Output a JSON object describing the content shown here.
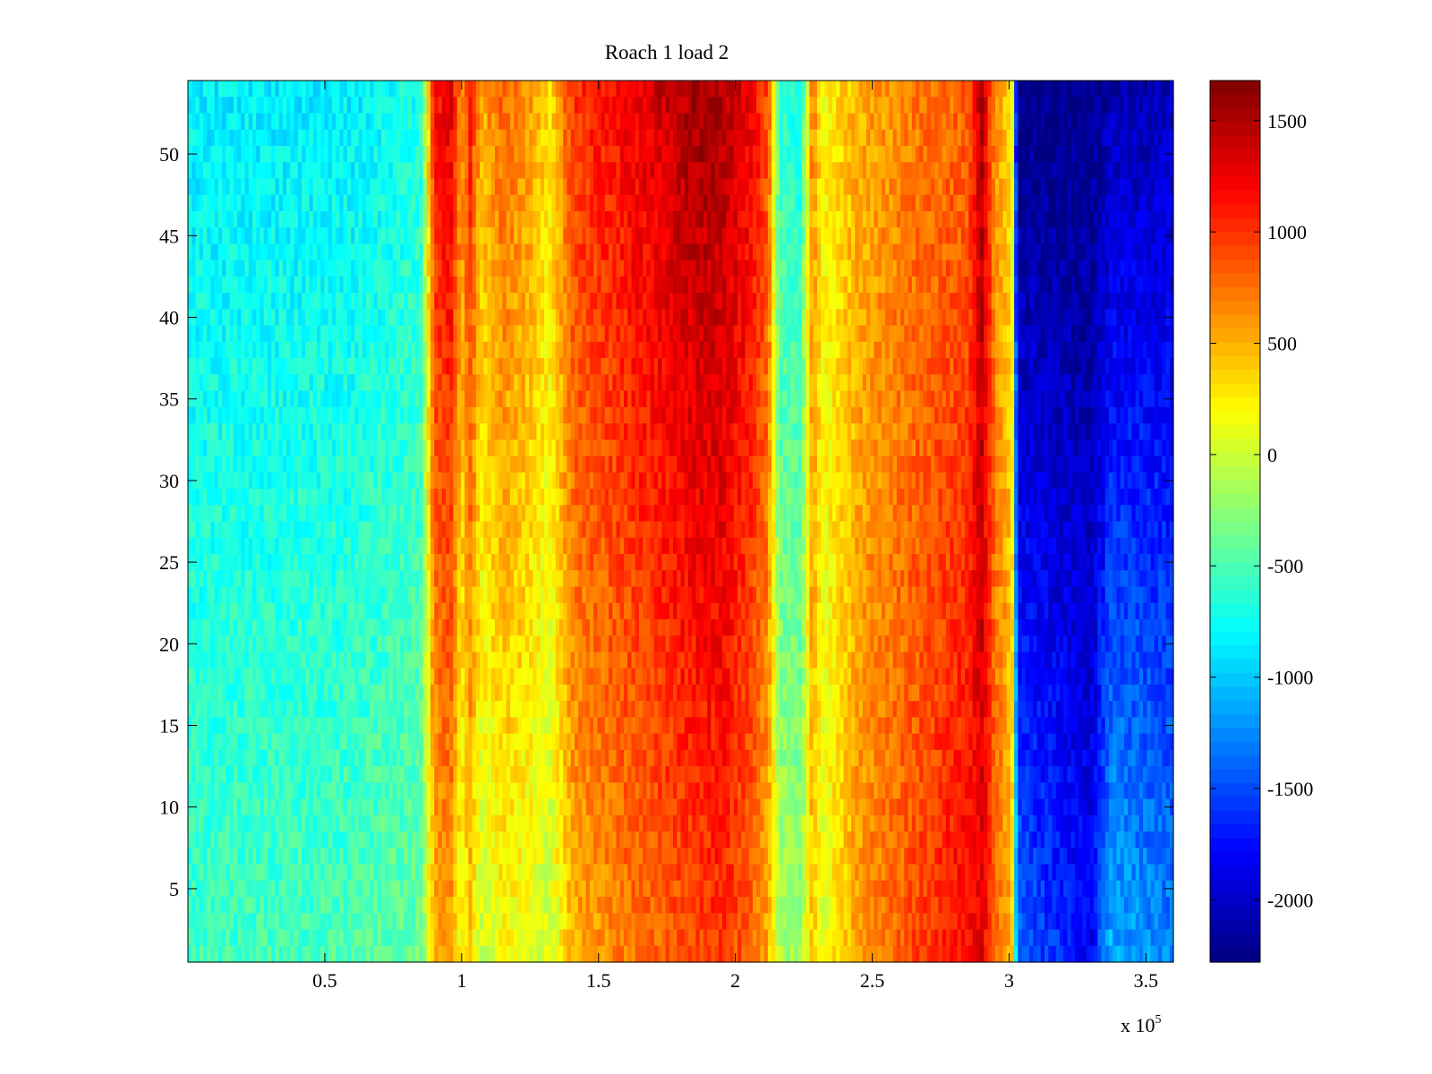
{
  "chart_data": {
    "type": "heatmap",
    "title": "Roach 1 load 2",
    "xlabel": "",
    "ylabel": "",
    "x_multiplier_label": "x 10",
    "x_multiplier_exponent": "5",
    "xlim": [
      0,
      360000
    ],
    "ylim": [
      0.5,
      54.5
    ],
    "x_ticks": [
      {
        "value": 50000,
        "label": "0.5"
      },
      {
        "value": 100000,
        "label": "1"
      },
      {
        "value": 150000,
        "label": "1.5"
      },
      {
        "value": 200000,
        "label": "2"
      },
      {
        "value": 250000,
        "label": "2.5"
      },
      {
        "value": 300000,
        "label": "3"
      },
      {
        "value": 350000,
        "label": "3.5"
      }
    ],
    "y_ticks": [
      {
        "value": 5,
        "label": "5"
      },
      {
        "value": 10,
        "label": "10"
      },
      {
        "value": 15,
        "label": "15"
      },
      {
        "value": 20,
        "label": "20"
      },
      {
        "value": 25,
        "label": "25"
      },
      {
        "value": 30,
        "label": "30"
      },
      {
        "value": 35,
        "label": "35"
      },
      {
        "value": 40,
        "label": "40"
      },
      {
        "value": 45,
        "label": "45"
      },
      {
        "value": 50,
        "label": "50"
      }
    ],
    "colormap": "jet",
    "clim": [
      -2280,
      1680
    ],
    "colorbar_ticks": [
      {
        "value": 1500,
        "label": "1500"
      },
      {
        "value": 1000,
        "label": "1000"
      },
      {
        "value": 500,
        "label": "500"
      },
      {
        "value": 0,
        "label": "0"
      },
      {
        "value": -500,
        "label": "-500"
      },
      {
        "value": -1000,
        "label": "-1000"
      },
      {
        "value": -1500,
        "label": "-1500"
      },
      {
        "value": -2000,
        "label": "-2000"
      }
    ],
    "grid": false,
    "rows": 54,
    "column_profile": [
      {
        "x": 0,
        "top": -850,
        "bottom": -550
      },
      {
        "x": 60000,
        "top": -850,
        "bottom": -500
      },
      {
        "x": 85000,
        "top": -700,
        "bottom": -400
      },
      {
        "x": 90000,
        "top": 1100,
        "bottom": 500
      },
      {
        "x": 96000,
        "top": 1300,
        "bottom": 600
      },
      {
        "x": 100000,
        "top": 600,
        "bottom": 100
      },
      {
        "x": 103000,
        "top": 1100,
        "bottom": 400
      },
      {
        "x": 107000,
        "top": 500,
        "bottom": 0
      },
      {
        "x": 115000,
        "top": 800,
        "bottom": 200
      },
      {
        "x": 125000,
        "top": 600,
        "bottom": 100
      },
      {
        "x": 132000,
        "top": 300,
        "bottom": 0
      },
      {
        "x": 141000,
        "top": 1000,
        "bottom": 500
      },
      {
        "x": 160000,
        "top": 1200,
        "bottom": 700
      },
      {
        "x": 185000,
        "top": 1550,
        "bottom": 900
      },
      {
        "x": 195000,
        "top": 1500,
        "bottom": 1000
      },
      {
        "x": 205000,
        "top": 1250,
        "bottom": 800
      },
      {
        "x": 212000,
        "top": 900,
        "bottom": 500
      },
      {
        "x": 216000,
        "top": -600,
        "bottom": -100
      },
      {
        "x": 224000,
        "top": -700,
        "bottom": -200
      },
      {
        "x": 228000,
        "top": 700,
        "bottom": 400
      },
      {
        "x": 232000,
        "top": 200,
        "bottom": 100
      },
      {
        "x": 245000,
        "top": 500,
        "bottom": 600
      },
      {
        "x": 265000,
        "top": 700,
        "bottom": 900
      },
      {
        "x": 285000,
        "top": 800,
        "bottom": 1200
      },
      {
        "x": 290000,
        "top": 1500,
        "bottom": 1300
      },
      {
        "x": 295000,
        "top": 600,
        "bottom": 800
      },
      {
        "x": 301000,
        "top": 300,
        "bottom": 500
      },
      {
        "x": 303000,
        "top": -2280,
        "bottom": -1400
      },
      {
        "x": 330000,
        "top": -2250,
        "bottom": -1800
      },
      {
        "x": 337000,
        "top": -2100,
        "bottom": -1100
      },
      {
        "x": 360000,
        "top": -2050,
        "bottom": -1300
      }
    ]
  }
}
